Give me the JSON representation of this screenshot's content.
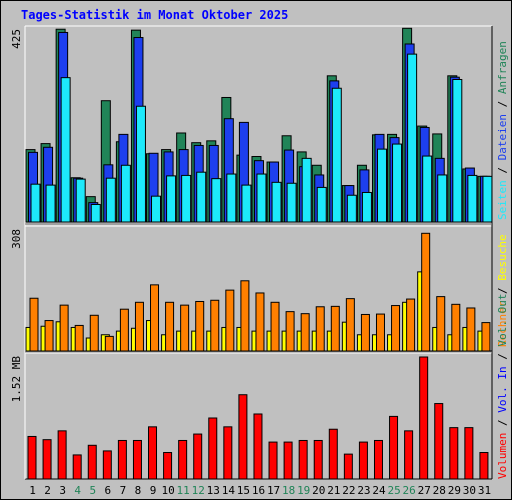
{
  "title": "Tages-Statistik im Monat Oktober 2025",
  "chart_data": [
    {
      "type": "bar",
      "panel": "top",
      "ymax_label": "425",
      "ylim": [
        0,
        425
      ],
      "categories": [
        "1",
        "2",
        "3",
        "4",
        "5",
        "6",
        "7",
        "8",
        "9",
        "10",
        "11",
        "12",
        "13",
        "14",
        "15",
        "16",
        "17",
        "18",
        "19",
        "20",
        "21",
        "22",
        "23",
        "24",
        "25",
        "26",
        "27",
        "28",
        "29",
        "30",
        "31"
      ],
      "weekend_days": [
        "4",
        "5",
        "11",
        "12",
        "18",
        "19",
        "25",
        "26"
      ],
      "series": [
        {
          "name": "Anfragen",
          "color": "#218458",
          "values": [
            157,
            170,
            418,
            96,
            55,
            263,
            174,
            416,
            148,
            157,
            193,
            172,
            176,
            270,
            145,
            142,
            130,
            187,
            152,
            123,
            317,
            79,
            123,
            189,
            190,
            420,
            208,
            191,
            317,
            115,
            99
          ]
        },
        {
          "name": "Dateien",
          "color": "#1d3fef",
          "values": [
            151,
            162,
            411,
            95,
            42,
            124,
            190,
            400,
            149,
            152,
            157,
            166,
            166,
            224,
            216,
            133,
            130,
            156,
            120,
            102,
            306,
            79,
            113,
            190,
            183,
            386,
            205,
            138,
            314,
            117,
            99
          ]
        },
        {
          "name": "Seiten",
          "color": "#1de9fb",
          "values": [
            82,
            80,
            313,
            93,
            38,
            95,
            123,
            251,
            56,
            100,
            101,
            108,
            94,
            104,
            80,
            104,
            86,
            84,
            138,
            75,
            290,
            58,
            64,
            158,
            169,
            364,
            143,
            102,
            309,
            101,
            99
          ]
        }
      ],
      "legend": [
        "Anfragen",
        "Dateien",
        "Seiten"
      ]
    },
    {
      "type": "bar",
      "panel": "middle",
      "ymax_label": "308",
      "ylim": [
        0,
        308
      ],
      "categories": [
        "1",
        "2",
        "3",
        "4",
        "5",
        "6",
        "7",
        "8",
        "9",
        "10",
        "11",
        "12",
        "13",
        "14",
        "15",
        "16",
        "17",
        "18",
        "19",
        "20",
        "21",
        "22",
        "23",
        "24",
        "25",
        "26",
        "27",
        "28",
        "29",
        "30",
        "31"
      ],
      "series": [
        {
          "name": "Besuche",
          "color": "#ffff00",
          "values": [
            58,
            61,
            72,
            58,
            32,
            40,
            49,
            56,
            75,
            40,
            49,
            49,
            49,
            58,
            58,
            49,
            49,
            49,
            49,
            49,
            49,
            71,
            40,
            40,
            40,
            120,
            195,
            58,
            40,
            58,
            49
          ]
        },
        {
          "name": "Rechner",
          "color": "#ff8000",
          "values": [
            130,
            75,
            113,
            63,
            88,
            36,
            103,
            120,
            163,
            120,
            113,
            122,
            125,
            150,
            173,
            143,
            120,
            97,
            92,
            109,
            110,
            129,
            90,
            91,
            112,
            128,
            290,
            134,
            115,
            106,
            70
          ]
        }
      ],
      "legend": [
        "Besuche",
        "Rechner"
      ]
    },
    {
      "type": "bar",
      "panel": "bottom",
      "ymax_label": "1.52 MB",
      "ylim_mb": [
        0,
        1.52
      ],
      "categories": [
        "1",
        "2",
        "3",
        "4",
        "5",
        "6",
        "7",
        "8",
        "9",
        "10",
        "11",
        "12",
        "13",
        "14",
        "15",
        "16",
        "17",
        "18",
        "19",
        "20",
        "21",
        "22",
        "23",
        "24",
        "25",
        "26",
        "27",
        "28",
        "29",
        "30",
        "31"
      ],
      "series": [
        {
          "name": "Volumen",
          "color": "#ff0000",
          "values_mb": [
            0.53,
            0.49,
            0.6,
            0.3,
            0.42,
            0.35,
            0.48,
            0.48,
            0.65,
            0.33,
            0.48,
            0.56,
            0.76,
            0.65,
            1.05,
            0.81,
            0.46,
            0.46,
            0.48,
            0.48,
            0.62,
            0.31,
            0.46,
            0.48,
            0.78,
            0.6,
            1.52,
            0.94,
            0.64,
            0.64,
            0.33
          ]
        }
      ],
      "legend": [
        "Volumen",
        "Vol. In",
        "Vol. Out"
      ]
    }
  ],
  "legend_colors": {
    "Anfragen": "#218458",
    "Dateien": "#1d3fef",
    "Seiten": "#1de9fb",
    "Besuche": "#ffff00",
    "Rechner": "#ff8000",
    "Volumen": "#ff0000",
    "Vol_In": "#0000ff",
    "Vol_Out": "#218458",
    "separator": "#000000",
    "background": "#c0c0c0",
    "title": "#0000ff",
    "weekend_label": "#218458",
    "weekday_label": "#000000"
  }
}
